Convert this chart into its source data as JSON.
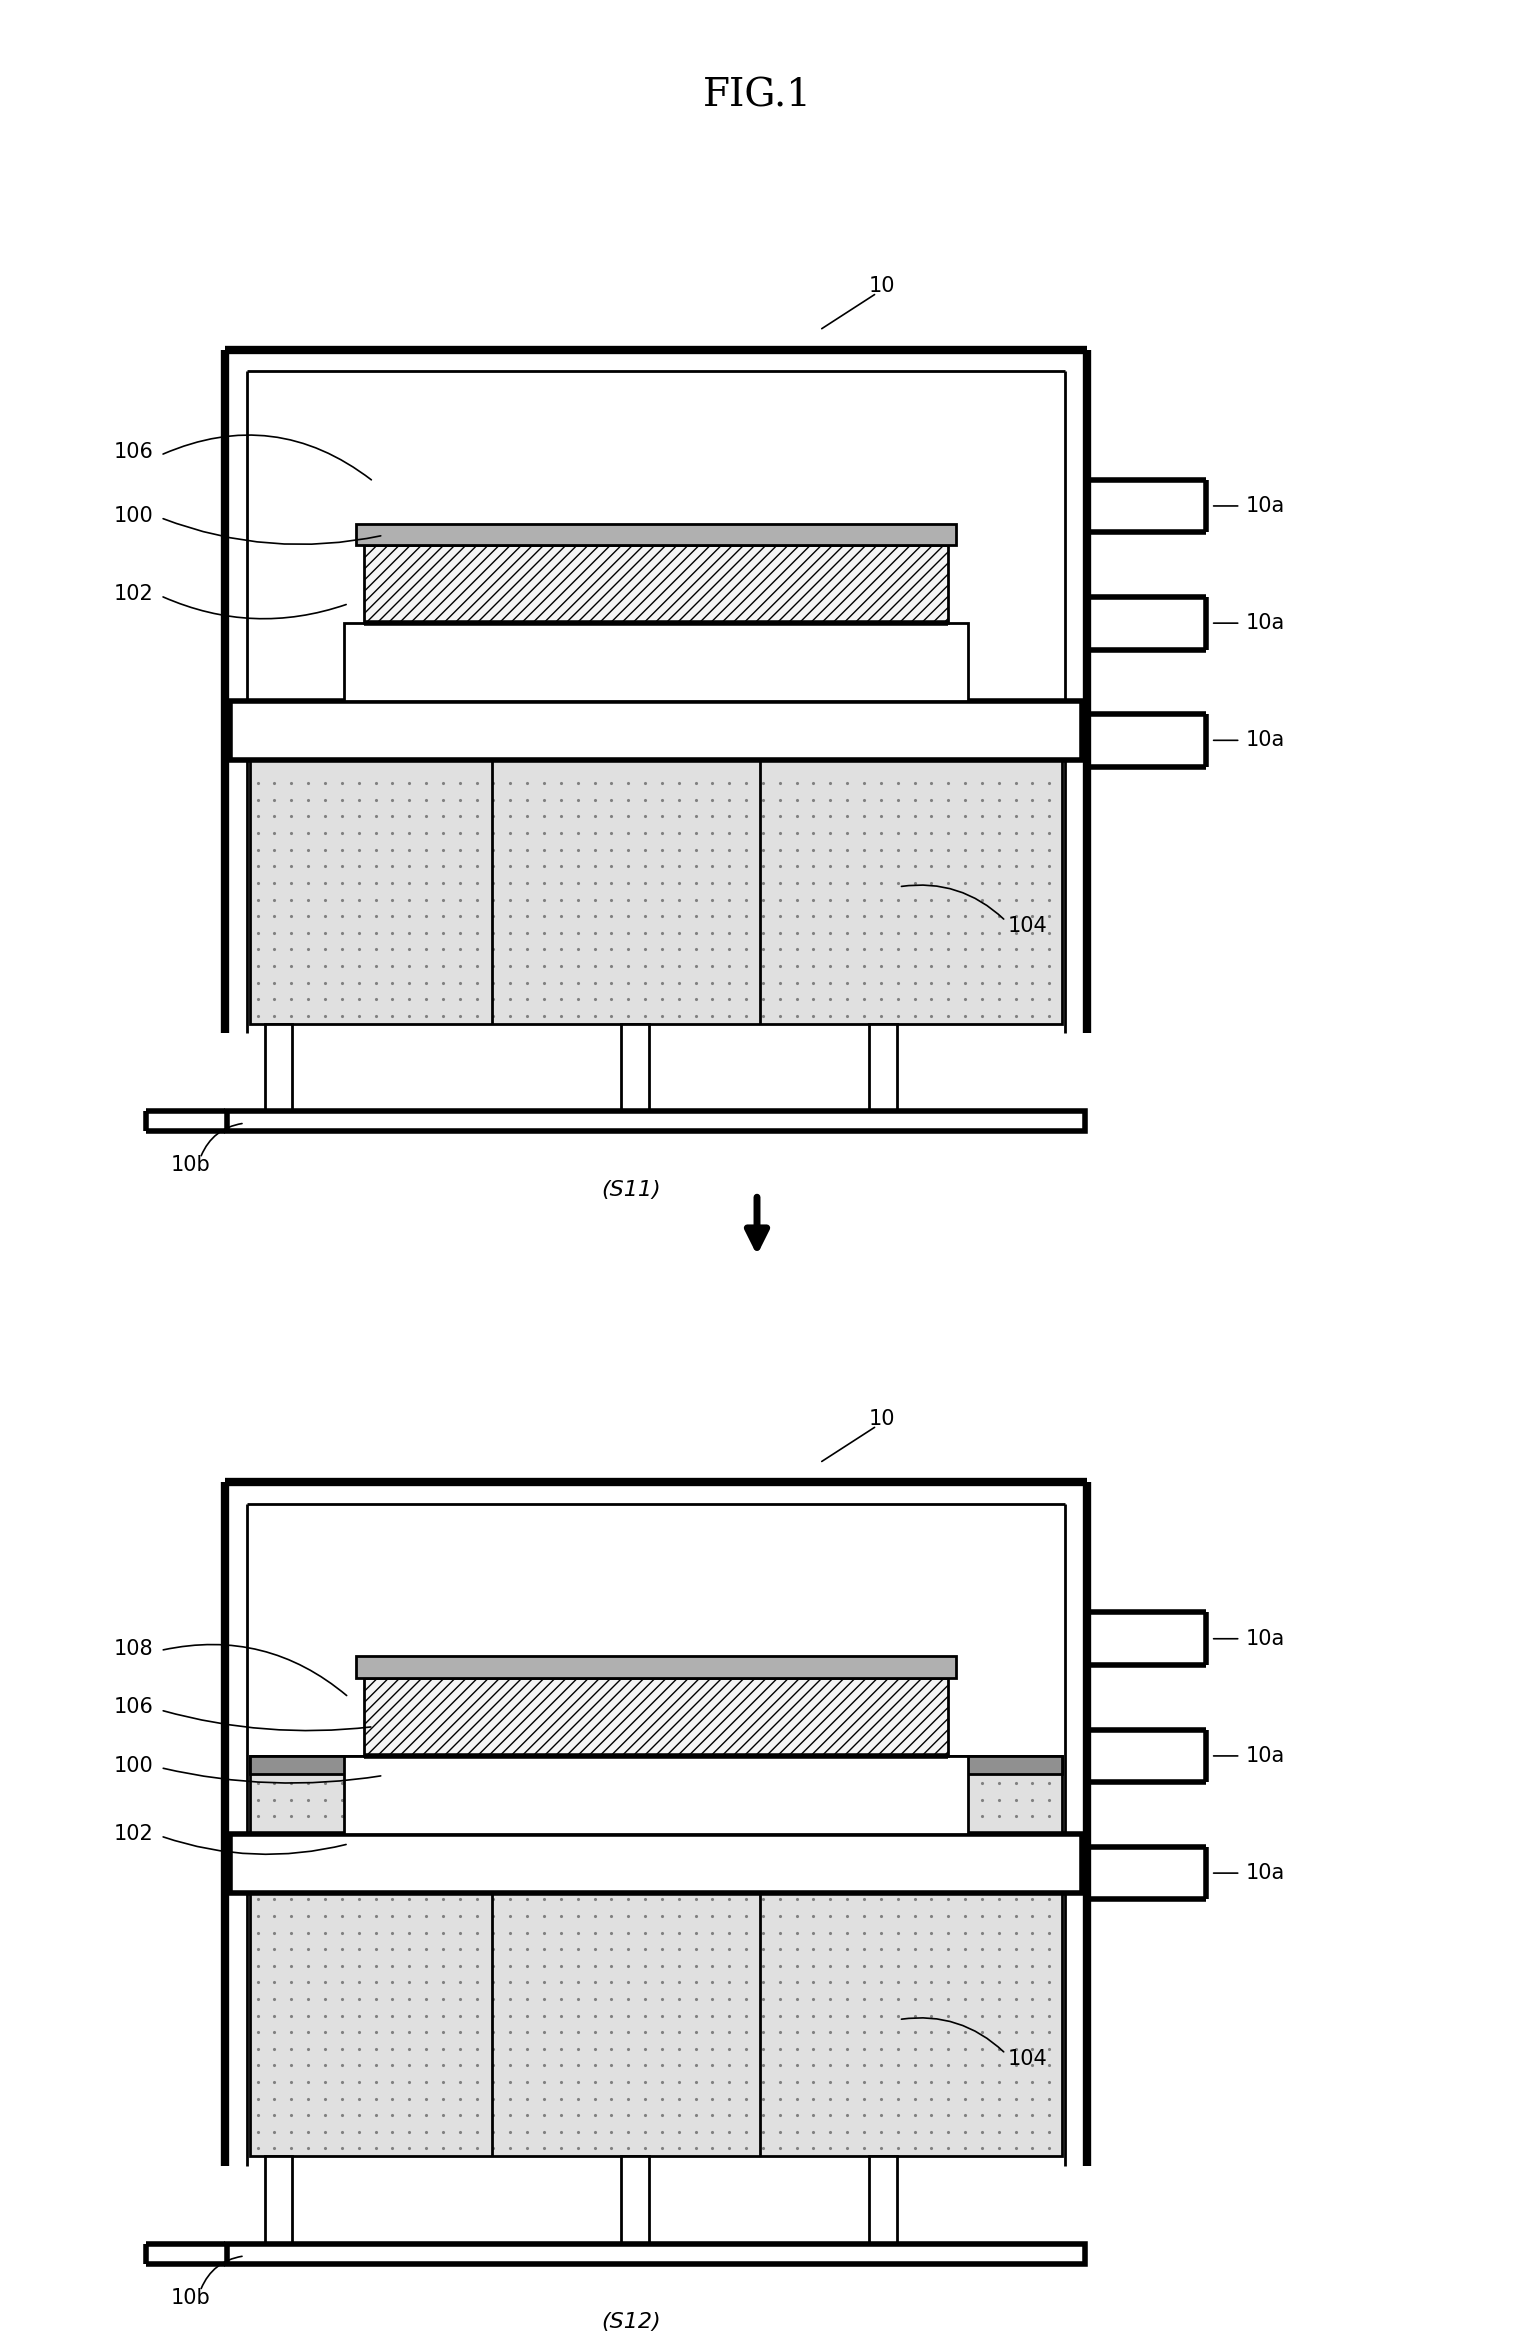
{
  "title": "FIG.1",
  "title_fontsize": 28,
  "label_fontsize": 15,
  "bg_color": "#ffffff",
  "line_color": "#000000",
  "diagram1_label": "(S11)",
  "diagram2_label": "(S12)"
}
